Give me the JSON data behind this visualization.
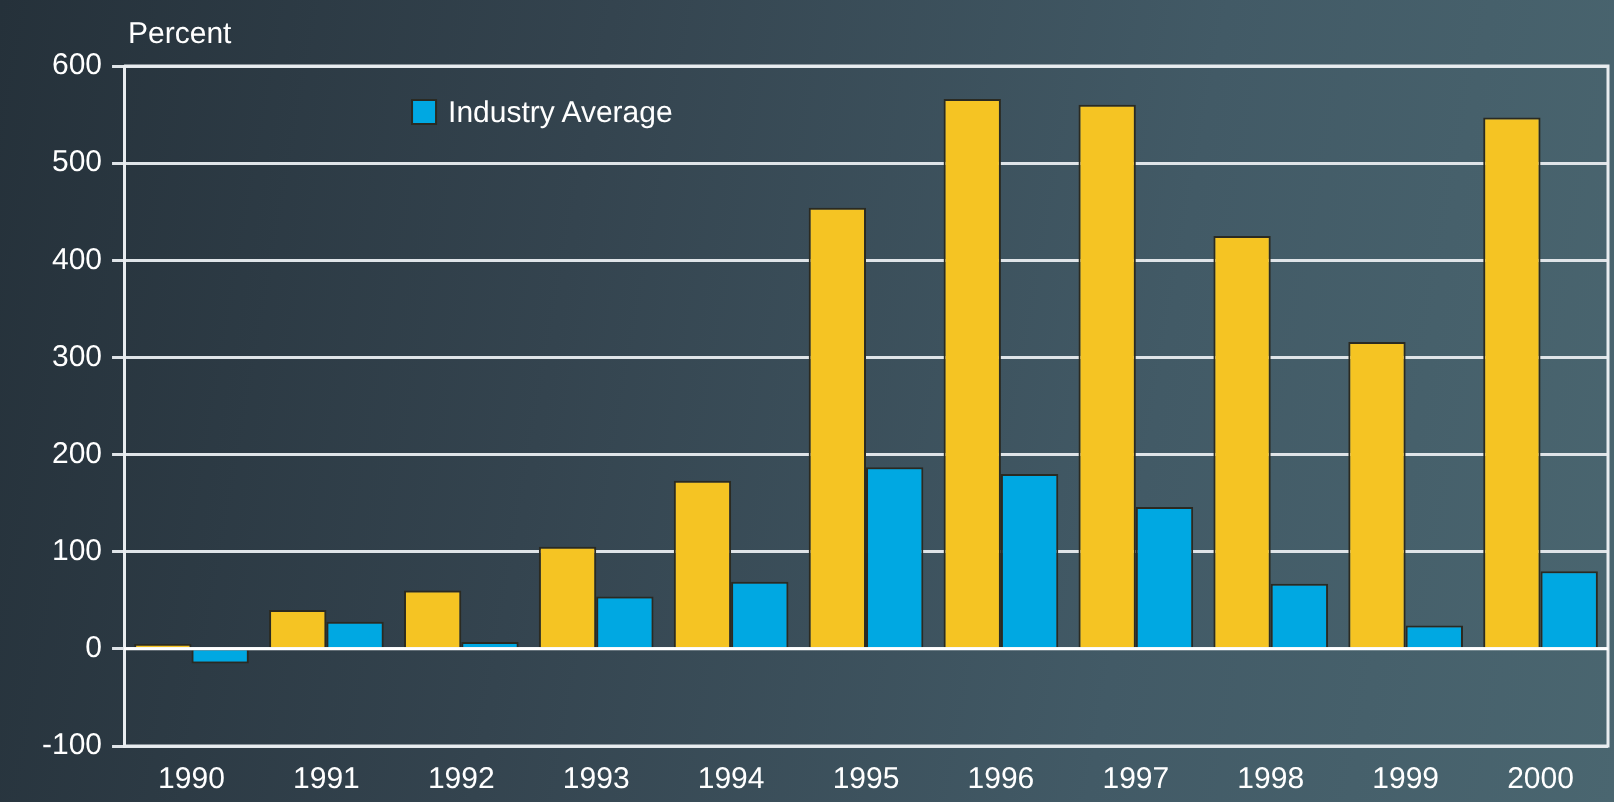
{
  "chart_data": {
    "type": "bar",
    "ylabel": "Percent",
    "categories": [
      "1990",
      "1991",
      "1992",
      "1993",
      "1994",
      "1995",
      "1996",
      "1997",
      "1998",
      "1999",
      "2000"
    ],
    "series": [
      {
        "color": "#f5c423",
        "values": [
          5,
          40,
          60,
          105,
          173,
          454,
          566,
          560,
          425,
          316,
          547
        ]
      },
      {
        "name": "Industry Average",
        "color": "#00a8e2",
        "values": [
          -15,
          28,
          7,
          54,
          69,
          187,
          180,
          146,
          67,
          24,
          80
        ]
      }
    ],
    "ylim": [
      -100,
      600
    ],
    "yticks": [
      -100,
      0,
      100,
      200,
      300,
      400,
      500,
      600
    ],
    "grid": "y",
    "legend": "top left"
  }
}
